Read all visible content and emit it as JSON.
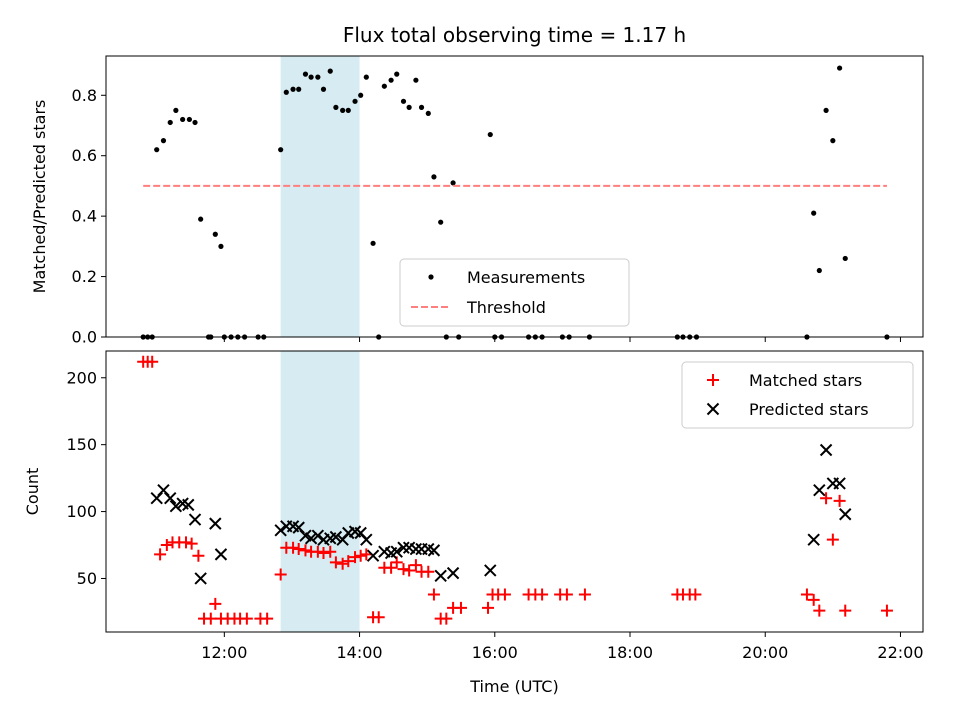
{
  "chart_data": [
    {
      "type": "scatter",
      "title": "Flux total observing time = 1.17 h",
      "xlabel": "",
      "ylabel": "Matched/Predicted stars",
      "xlim": [
        "10:15",
        "22:20"
      ],
      "ylim": [
        0,
        0.93
      ],
      "yticks": [
        0.0,
        0.2,
        0.4,
        0.6,
        0.8
      ],
      "ytick_labels": [
        "0.0",
        "0.2",
        "0.4",
        "0.6",
        "0.8"
      ],
      "shaded_span": [
        "12:50",
        "14:00"
      ],
      "shaded_color": "#add8e6",
      "legend_position": "lower-center",
      "series": [
        {
          "name": "Measurements",
          "kind": "dot",
          "color": "#000000",
          "points": [
            [
              "10:48",
              0
            ],
            [
              "10:52",
              0
            ],
            [
              "10:56",
              0
            ],
            [
              "11:00",
              0.62
            ],
            [
              "11:06",
              0.65
            ],
            [
              "11:12",
              0.71
            ],
            [
              "11:17",
              0.75
            ],
            [
              "11:23",
              0.72
            ],
            [
              "11:29",
              0.72
            ],
            [
              "11:34",
              0.71
            ],
            [
              "11:39",
              0.39
            ],
            [
              "11:46",
              0
            ],
            [
              "11:48",
              0
            ],
            [
              "11:52",
              0.34
            ],
            [
              "11:57",
              0.3
            ],
            [
              "12:00",
              0
            ],
            [
              "12:06",
              0
            ],
            [
              "12:12",
              0
            ],
            [
              "12:18",
              0
            ],
            [
              "12:30",
              0
            ],
            [
              "12:35",
              0
            ],
            [
              "12:50",
              0.62
            ],
            [
              "12:55",
              0.81
            ],
            [
              "13:01",
              0.82
            ],
            [
              "13:06",
              0.82
            ],
            [
              "13:12",
              0.87
            ],
            [
              "13:17",
              0.86
            ],
            [
              "13:23",
              0.86
            ],
            [
              "13:28",
              0.82
            ],
            [
              "13:34",
              0.88
            ],
            [
              "13:39",
              0.76
            ],
            [
              "13:45",
              0.75
            ],
            [
              "13:50",
              0.75
            ],
            [
              "13:56",
              0.78
            ],
            [
              "14:01",
              0.8
            ],
            [
              "14:06",
              0.86
            ],
            [
              "14:12",
              0.31
            ],
            [
              "14:17",
              0
            ],
            [
              "14:22",
              0.83
            ],
            [
              "14:28",
              0.85
            ],
            [
              "14:33",
              0.87
            ],
            [
              "14:39",
              0.78
            ],
            [
              "14:44",
              0.76
            ],
            [
              "14:50",
              0.85
            ],
            [
              "14:55",
              0.76
            ],
            [
              "15:01",
              0.74
            ],
            [
              "15:06",
              0.53
            ],
            [
              "15:12",
              0.38
            ],
            [
              "15:17",
              0
            ],
            [
              "15:23",
              0.51
            ],
            [
              "15:28",
              0
            ],
            [
              "15:56",
              0.67
            ],
            [
              "16:00",
              0
            ],
            [
              "16:06",
              0
            ],
            [
              "16:30",
              0
            ],
            [
              "16:36",
              0
            ],
            [
              "16:42",
              0
            ],
            [
              "17:00",
              0
            ],
            [
              "17:06",
              0
            ],
            [
              "17:24",
              0
            ],
            [
              "18:42",
              0
            ],
            [
              "18:47",
              0
            ],
            [
              "18:53",
              0
            ],
            [
              "18:59",
              0
            ],
            [
              "20:37",
              0
            ],
            [
              "20:43",
              0.41
            ],
            [
              "20:48",
              0.22
            ],
            [
              "20:54",
              0.75
            ],
            [
              "21:00",
              0.65
            ],
            [
              "21:06",
              0.89
            ],
            [
              "21:11",
              0.26
            ],
            [
              "21:48",
              0
            ]
          ]
        },
        {
          "name": "Threshold",
          "kind": "dashed-line",
          "color": "#ff7f7f",
          "points": [
            [
              "10:48",
              0.5
            ],
            [
              "21:48",
              0.5
            ]
          ]
        }
      ]
    },
    {
      "type": "scatter",
      "xlabel": "Time (UTC)",
      "ylabel": "Count",
      "xlim": [
        "10:15",
        "22:20"
      ],
      "ylim": [
        10,
        220
      ],
      "xticks": [
        "12:00",
        "14:00",
        "16:00",
        "18:00",
        "20:00",
        "22:00"
      ],
      "yticks": [
        50,
        100,
        150,
        200
      ],
      "ytick_labels": [
        "50",
        "100",
        "150",
        "200"
      ],
      "shaded_span": [
        "12:50",
        "14:00"
      ],
      "shaded_color": "#add8e6",
      "legend_position": "top-right",
      "series": [
        {
          "name": "Matched stars",
          "kind": "plus",
          "color": "#ff0000",
          "points": [
            [
              "10:48",
              212
            ],
            [
              "10:52",
              212
            ],
            [
              "10:56",
              212
            ],
            [
              "11:03",
              68
            ],
            [
              "11:09",
              75
            ],
            [
              "11:14",
              77
            ],
            [
              "11:20",
              77
            ],
            [
              "11:26",
              77
            ],
            [
              "11:31",
              76
            ],
            [
              "11:37",
              67
            ],
            [
              "11:42",
              20
            ],
            [
              "11:48",
              20
            ],
            [
              "11:52",
              31
            ],
            [
              "11:57",
              20
            ],
            [
              "12:03",
              20
            ],
            [
              "12:09",
              20
            ],
            [
              "12:14",
              20
            ],
            [
              "12:20",
              20
            ],
            [
              "12:32",
              20
            ],
            [
              "12:38",
              20
            ],
            [
              "12:50",
              53
            ],
            [
              "12:55",
              73
            ],
            [
              "13:01",
              73
            ],
            [
              "13:06",
              72
            ],
            [
              "13:12",
              71
            ],
            [
              "13:17",
              70
            ],
            [
              "13:23",
              70
            ],
            [
              "13:28",
              69
            ],
            [
              "13:34",
              70
            ],
            [
              "13:39",
              62
            ],
            [
              "13:45",
              61
            ],
            [
              "13:50",
              63
            ],
            [
              "13:56",
              66
            ],
            [
              "14:01",
              67
            ],
            [
              "14:06",
              68
            ],
            [
              "14:12",
              21
            ],
            [
              "14:17",
              21
            ],
            [
              "14:22",
              58
            ],
            [
              "14:28",
              58
            ],
            [
              "14:33",
              62
            ],
            [
              "14:39",
              57
            ],
            [
              "14:44",
              56
            ],
            [
              "14:50",
              60
            ],
            [
              "14:55",
              55
            ],
            [
              "15:01",
              55
            ],
            [
              "15:06",
              38
            ],
            [
              "15:12",
              20
            ],
            [
              "15:17",
              20
            ],
            [
              "15:23",
              28
            ],
            [
              "15:30",
              28
            ],
            [
              "15:54",
              28
            ],
            [
              "15:58",
              38
            ],
            [
              "16:03",
              38
            ],
            [
              "16:09",
              38
            ],
            [
              "16:30",
              38
            ],
            [
              "16:36",
              38
            ],
            [
              "16:42",
              38
            ],
            [
              "16:58",
              38
            ],
            [
              "17:04",
              38
            ],
            [
              "17:20",
              38
            ],
            [
              "18:42",
              38
            ],
            [
              "18:47",
              38
            ],
            [
              "18:53",
              38
            ],
            [
              "18:58",
              38
            ],
            [
              "20:37",
              38
            ],
            [
              "20:43",
              34
            ],
            [
              "20:48",
              26
            ],
            [
              "20:54",
              110
            ],
            [
              "21:00",
              79
            ],
            [
              "21:06",
              108
            ],
            [
              "21:11",
              26
            ],
            [
              "21:48",
              26
            ]
          ]
        },
        {
          "name": "Predicted stars",
          "kind": "cross",
          "color": "#000000",
          "points": [
            [
              "11:00",
              110
            ],
            [
              "11:06",
              116
            ],
            [
              "11:12",
              110
            ],
            [
              "11:17",
              104
            ],
            [
              "11:23",
              106
            ],
            [
              "11:28",
              105
            ],
            [
              "11:34",
              94
            ],
            [
              "11:39",
              50
            ],
            [
              "11:52",
              91
            ],
            [
              "11:57",
              68
            ],
            [
              "12:50",
              86
            ],
            [
              "12:55",
              89
            ],
            [
              "13:01",
              89
            ],
            [
              "13:06",
              88
            ],
            [
              "13:12",
              82
            ],
            [
              "13:17",
              80
            ],
            [
              "13:23",
              82
            ],
            [
              "13:28",
              79
            ],
            [
              "13:34",
              80
            ],
            [
              "13:39",
              81
            ],
            [
              "13:45",
              79
            ],
            [
              "13:50",
              84
            ],
            [
              "13:56",
              85
            ],
            [
              "14:01",
              84
            ],
            [
              "14:06",
              79
            ],
            [
              "14:12",
              67
            ],
            [
              "14:22",
              70
            ],
            [
              "14:28",
              69
            ],
            [
              "14:33",
              70
            ],
            [
              "14:39",
              73
            ],
            [
              "14:44",
              73
            ],
            [
              "14:50",
              72
            ],
            [
              "14:55",
              72
            ],
            [
              "15:01",
              72
            ],
            [
              "15:06",
              71
            ],
            [
              "15:12",
              52
            ],
            [
              "15:23",
              54
            ],
            [
              "15:56",
              56
            ],
            [
              "20:43",
              79
            ],
            [
              "20:48",
              116
            ],
            [
              "20:54",
              146
            ],
            [
              "21:00",
              121
            ],
            [
              "21:06",
              121
            ],
            [
              "21:11",
              98
            ]
          ]
        }
      ]
    }
  ]
}
